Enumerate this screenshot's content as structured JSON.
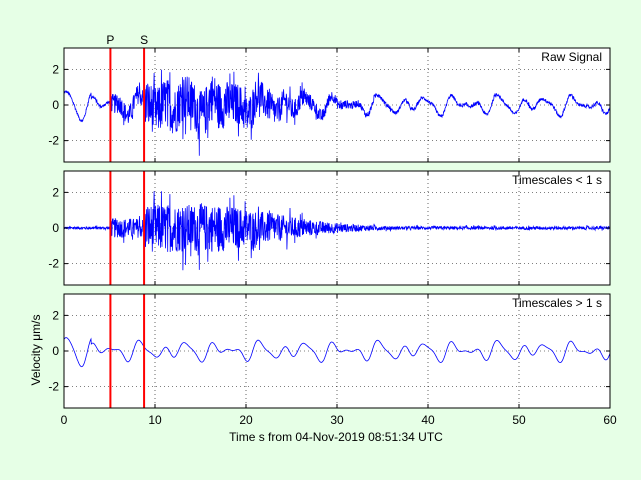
{
  "figure": {
    "background": "#e6ffe6",
    "plot_background": "#ffffff",
    "signal_color": "#0000ff",
    "marker_color": "#ff0000",
    "xlabel": "Time s from 04-Nov-2019 08:51:34 UTC",
    "ylabel": "Velocity μm/s"
  },
  "chart_data": [
    {
      "type": "line",
      "title": "Raw Signal",
      "series": [
        {
          "kind": "raw",
          "duration_s": 60,
          "note_samples": "waveform"
        }
      ],
      "xlim": [
        0,
        60
      ],
      "ylim": [
        -3.2,
        3.2
      ],
      "xticks": [
        0,
        10,
        20,
        30,
        40,
        50,
        60
      ],
      "yticks": [
        -2,
        0,
        2
      ],
      "grid": true,
      "markers": [
        {
          "label": "P",
          "x": 5.1
        },
        {
          "label": "S",
          "x": 8.8
        }
      ]
    },
    {
      "type": "line",
      "title": "Timescales < 1 s",
      "series": [
        {
          "kind": "high"
        }
      ],
      "xlim": [
        0,
        60
      ],
      "ylim": [
        -3.2,
        3.2
      ],
      "xticks": [
        0,
        10,
        20,
        30,
        40,
        50,
        60
      ],
      "yticks": [
        -2,
        0,
        2
      ],
      "grid": true,
      "markers": [
        {
          "label": "P",
          "x": 5.1
        },
        {
          "label": "S",
          "x": 8.8
        }
      ]
    },
    {
      "type": "line",
      "title": "Timescales > 1 s",
      "series": [
        {
          "kind": "low"
        }
      ],
      "xlim": [
        0,
        60
      ],
      "ylim": [
        -3.2,
        3.2
      ],
      "xticks": [
        0,
        10,
        20,
        30,
        40,
        50,
        60
      ],
      "xtick_labels": [
        "0",
        "10",
        "20",
        "30",
        "40",
        "50",
        "60"
      ],
      "yticks": [
        -2,
        0,
        2
      ],
      "grid": true,
      "markers": [
        {
          "label": "P",
          "x": 5.1
        },
        {
          "label": "S",
          "x": 8.8
        }
      ]
    }
  ]
}
